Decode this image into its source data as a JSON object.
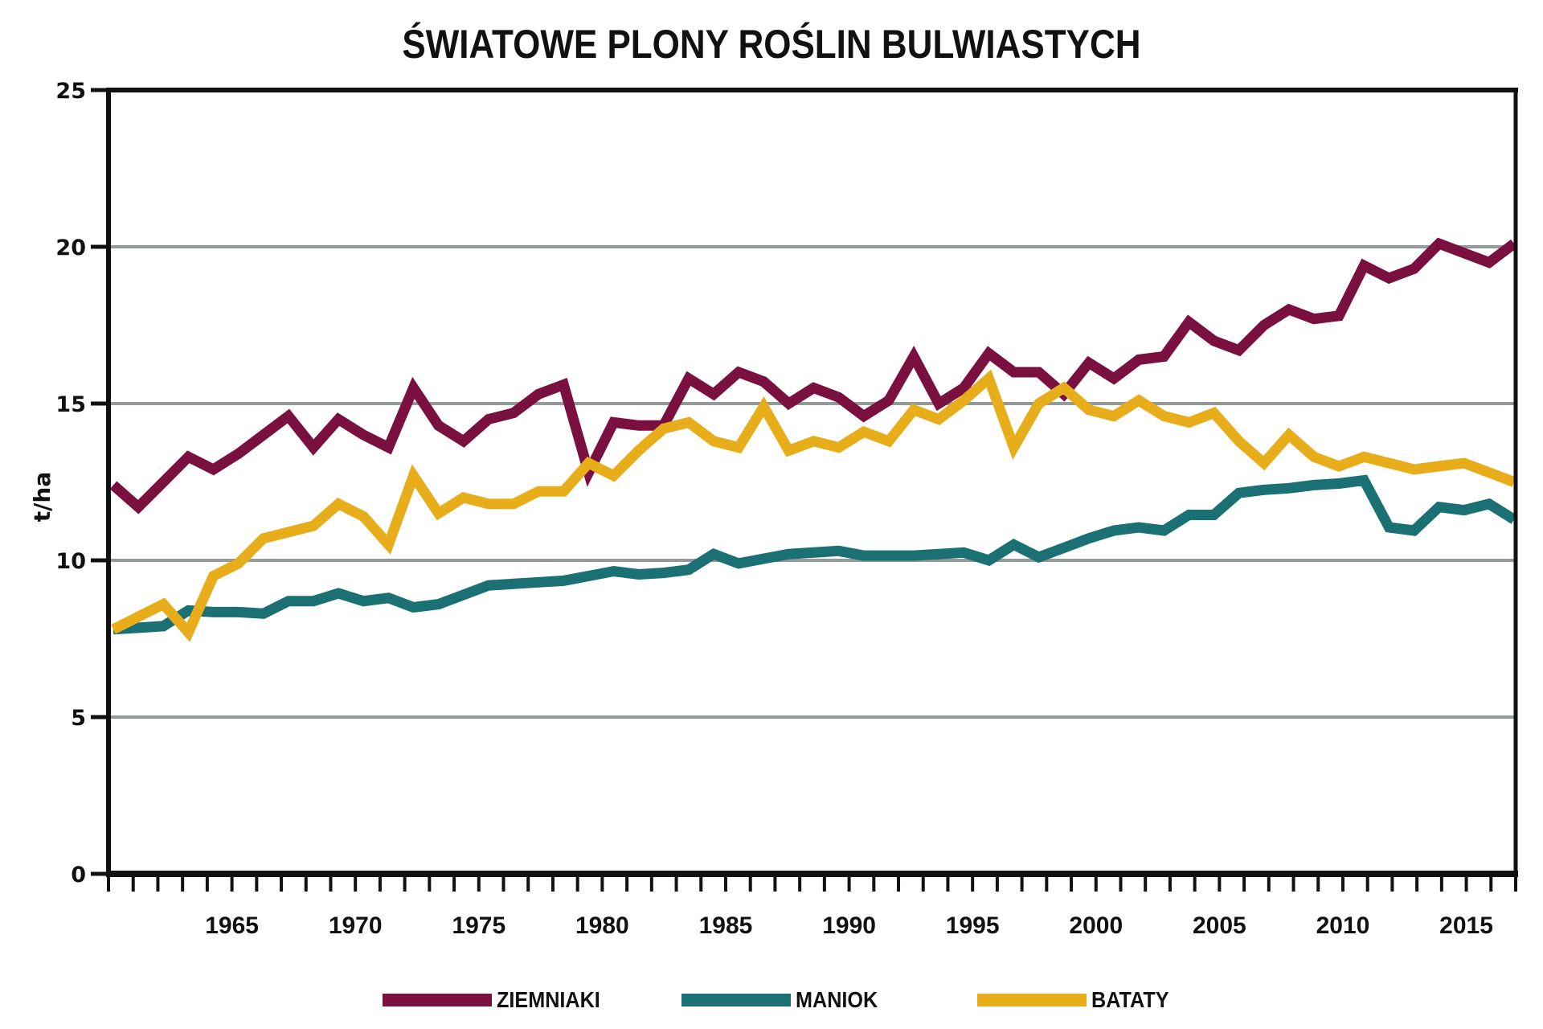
{
  "chart_data": {
    "type": "line",
    "title": "ŚWIATOWE PLONY ROŚLIN BULWIASTYCH",
    "xlabel": "",
    "ylabel": "t/ha",
    "ylim": [
      0,
      25
    ],
    "xlim": [
      1960,
      2017
    ],
    "yticks": [
      0,
      5,
      10,
      15,
      20,
      25
    ],
    "xtick_labels": [
      "1965",
      "1970",
      "1975",
      "1980",
      "1985",
      "1990",
      "1995",
      "2000",
      "2005",
      "2010",
      "2015"
    ],
    "grid": "horizontal",
    "legend_position": "bottom",
    "x": [
      1961,
      1962,
      1963,
      1964,
      1965,
      1966,
      1967,
      1968,
      1969,
      1970,
      1971,
      1972,
      1973,
      1974,
      1975,
      1976,
      1977,
      1978,
      1979,
      1980,
      1981,
      1982,
      1983,
      1984,
      1985,
      1986,
      1987,
      1988,
      1989,
      1990,
      1991,
      1992,
      1993,
      1994,
      1995,
      1996,
      1997,
      1998,
      1999,
      2000,
      2001,
      2002,
      2003,
      2004,
      2005,
      2006,
      2007,
      2008,
      2009,
      2010,
      2011,
      2012,
      2013,
      2014,
      2015,
      2016,
      2017
    ],
    "series": [
      {
        "name": "ZIEMNIAKI",
        "color": "#7a1040",
        "values": [
          12.4,
          11.7,
          12.5,
          13.3,
          12.9,
          13.4,
          14.0,
          14.6,
          13.6,
          14.5,
          14.0,
          13.6,
          15.5,
          14.3,
          13.8,
          14.5,
          14.7,
          15.3,
          15.6,
          12.8,
          14.4,
          14.3,
          14.3,
          15.8,
          15.3,
          16.0,
          15.7,
          15.0,
          15.5,
          15.2,
          14.6,
          15.1,
          16.5,
          15.0,
          15.5,
          16.6,
          16.0,
          16.0,
          15.3,
          16.3,
          15.8,
          16.4,
          16.5,
          17.6,
          17.0,
          16.7,
          17.5,
          18.0,
          17.7,
          17.8,
          19.4,
          19.0,
          19.3,
          20.1,
          19.8,
          19.5,
          20.1
        ]
      },
      {
        "name": "MANIOK",
        "color": "#1a7073",
        "values": [
          7.8,
          7.85,
          7.9,
          8.4,
          8.35,
          8.35,
          8.3,
          8.7,
          8.7,
          8.95,
          8.7,
          8.8,
          8.5,
          8.6,
          8.9,
          9.2,
          9.25,
          9.3,
          9.35,
          9.5,
          9.65,
          9.55,
          9.6,
          9.7,
          10.2,
          9.9,
          10.05,
          10.2,
          10.25,
          10.3,
          10.15,
          10.15,
          10.15,
          10.2,
          10.25,
          10.0,
          10.5,
          10.1,
          10.4,
          10.7,
          10.95,
          11.05,
          10.95,
          11.45,
          11.45,
          12.15,
          12.25,
          12.3,
          12.4,
          12.45,
          12.55,
          11.05,
          10.95,
          11.7,
          11.6,
          11.8,
          11.3
        ]
      },
      {
        "name": "BATATY",
        "color": "#e8ad1a",
        "values": [
          7.8,
          8.2,
          8.6,
          7.7,
          9.5,
          9.9,
          10.7,
          10.9,
          11.1,
          11.8,
          11.4,
          10.5,
          12.7,
          11.5,
          12.0,
          11.8,
          11.8,
          12.2,
          12.2,
          13.1,
          12.7,
          13.5,
          14.2,
          14.4,
          13.8,
          13.6,
          14.9,
          13.5,
          13.8,
          13.6,
          14.1,
          13.8,
          14.8,
          14.5,
          15.1,
          15.8,
          13.6,
          15.0,
          15.5,
          14.8,
          14.6,
          15.1,
          14.6,
          14.4,
          14.7,
          13.8,
          13.1,
          14.0,
          13.3,
          13.0,
          13.3,
          13.1,
          12.9,
          13.0,
          13.1,
          12.8,
          12.5
        ]
      }
    ]
  },
  "colors": {
    "axis": "#111111",
    "grid": "#939a98"
  }
}
